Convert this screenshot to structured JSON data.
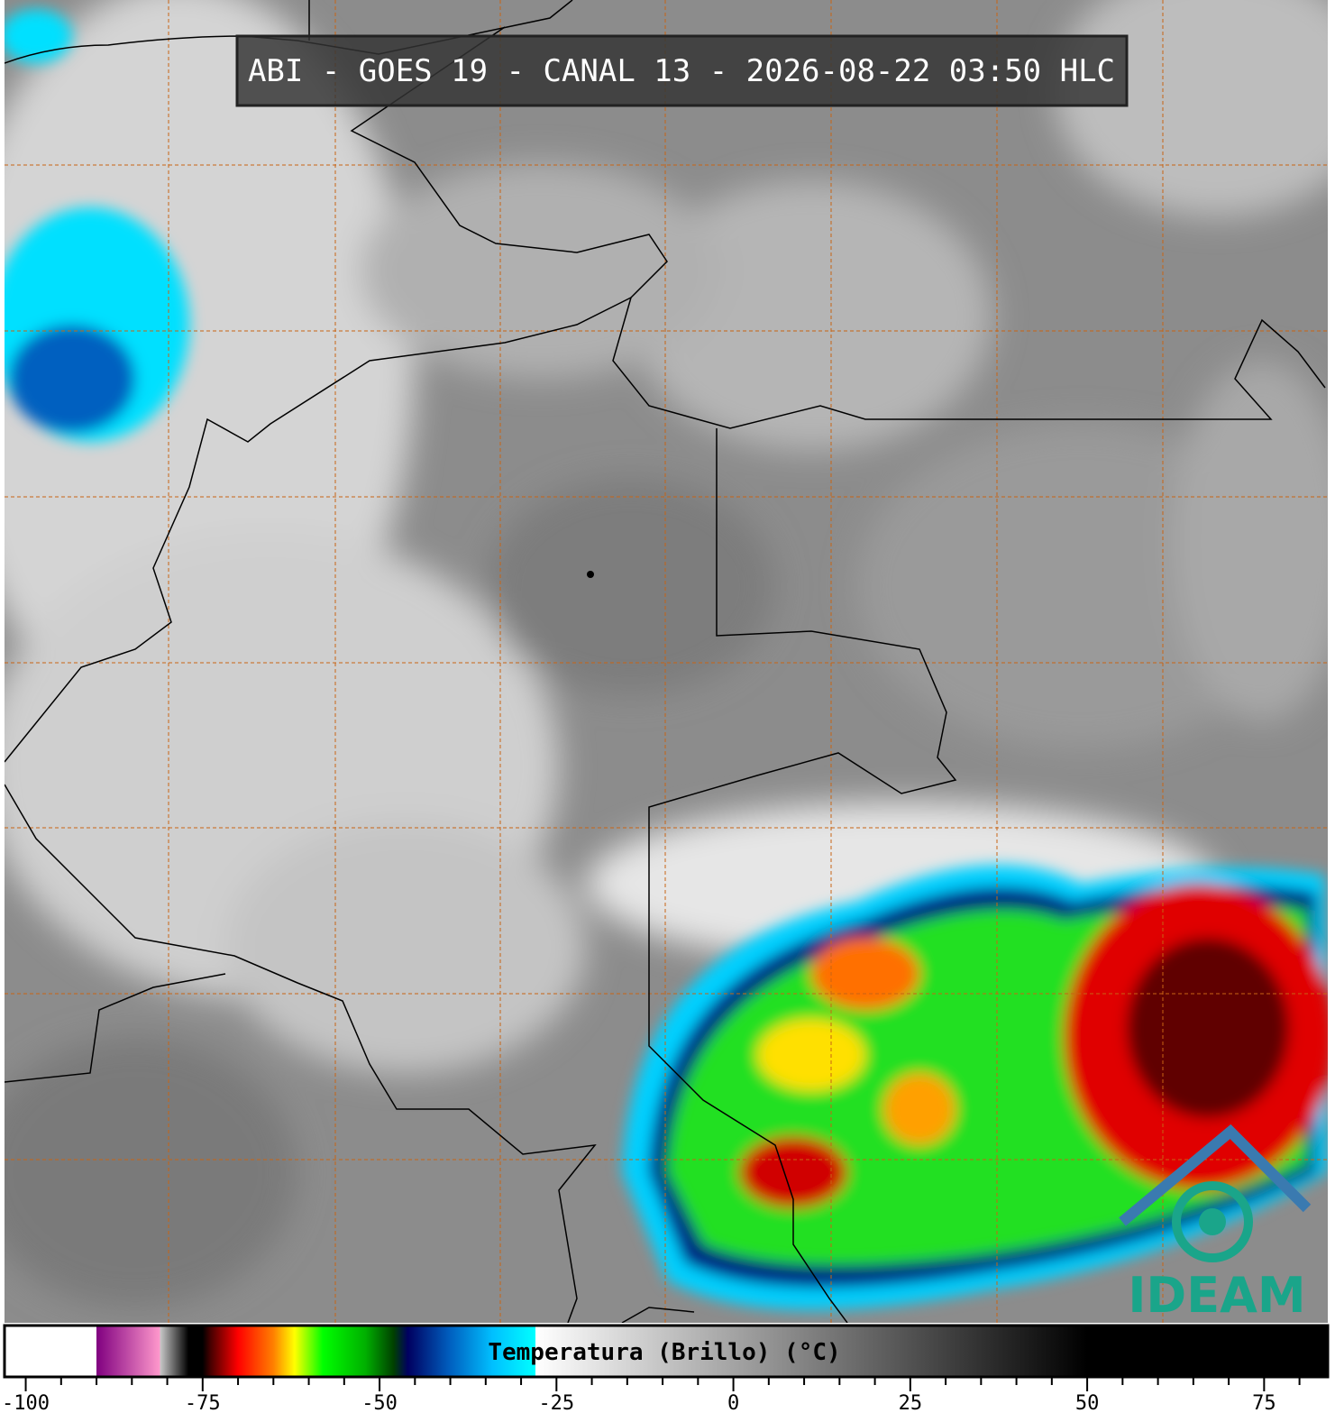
{
  "map": {
    "title": "ABI - GOES 19 - CANAL 13 - 2026-08-22 03:50 HLC",
    "logo": "IDEAM"
  },
  "chart_data": {
    "type": "colorbar",
    "label": "Temperatura (Brillo) (°C)",
    "xlim": [
      -103,
      84
    ],
    "xticks": [
      -100,
      -75,
      -50,
      -25,
      0,
      25,
      50,
      75
    ],
    "xminorticks": [
      -95,
      -90,
      -85,
      -80,
      -70,
      -65,
      -60,
      -55,
      -45,
      -40,
      -35,
      -30,
      -20,
      -15,
      -10,
      -5,
      5,
      10,
      15,
      20,
      30,
      35,
      40,
      45,
      55,
      60,
      65,
      70,
      80
    ],
    "stops": [
      {
        "value": -103,
        "color": "#ffffff"
      },
      {
        "value": -90,
        "color": "#ffffff"
      },
      {
        "value": -90,
        "color": "#800080"
      },
      {
        "value": -81,
        "color": "#ff99cc"
      },
      {
        "value": -81,
        "color": "#c8c8c8"
      },
      {
        "value": -77,
        "color": "#000000"
      },
      {
        "value": -75,
        "color": "#000000"
      },
      {
        "value": -74,
        "color": "#400000"
      },
      {
        "value": -70,
        "color": "#ff0000"
      },
      {
        "value": -65,
        "color": "#ff8000"
      },
      {
        "value": -62,
        "color": "#ffff00"
      },
      {
        "value": -58,
        "color": "#00ff00"
      },
      {
        "value": -52,
        "color": "#00b000"
      },
      {
        "value": -48,
        "color": "#004000"
      },
      {
        "value": -46,
        "color": "#000060"
      },
      {
        "value": -40,
        "color": "#0060c0"
      },
      {
        "value": -34,
        "color": "#00c0ff"
      },
      {
        "value": -28,
        "color": "#00ffff"
      },
      {
        "value": -28,
        "color": "#ffffff"
      },
      {
        "value": 50,
        "color": "#000000"
      },
      {
        "value": 84,
        "color": "#000000"
      }
    ]
  }
}
